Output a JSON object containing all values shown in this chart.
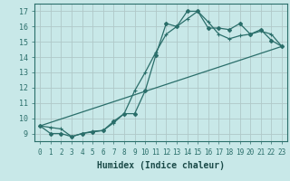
{
  "xlabel": "Humidex (Indice chaleur)",
  "background_color": "#c8e8e8",
  "grid_color": "#b0c8c8",
  "line_color": "#2a6e6a",
  "xlim": [
    -0.5,
    23.5
  ],
  "ylim": [
    8.5,
    17.5
  ],
  "xtick_vals": [
    0,
    1,
    2,
    3,
    4,
    5,
    6,
    7,
    8,
    9,
    10,
    11,
    12,
    13,
    14,
    15,
    16,
    17,
    18,
    19,
    20,
    21,
    22,
    23
  ],
  "ytick_vals": [
    9,
    10,
    11,
    12,
    13,
    14,
    15,
    16,
    17
  ],
  "line1_x": [
    0,
    1,
    2,
    3,
    4,
    5,
    6,
    7,
    8,
    9,
    10,
    11,
    12,
    13,
    14,
    15,
    16,
    17,
    18,
    19,
    20,
    21,
    22,
    23
  ],
  "line1_y": [
    9.5,
    9.0,
    9.0,
    8.8,
    9.0,
    9.1,
    9.2,
    9.8,
    10.3,
    10.3,
    11.8,
    14.1,
    16.2,
    16.0,
    17.0,
    17.0,
    15.9,
    15.9,
    15.8,
    16.2,
    15.5,
    15.8,
    15.1,
    14.7
  ],
  "line2_x": [
    0,
    1,
    2,
    3,
    4,
    5,
    6,
    7,
    8,
    9,
    10,
    11,
    12,
    13,
    14,
    15,
    16,
    17,
    18,
    19,
    20,
    21,
    22,
    23
  ],
  "line2_y": [
    9.5,
    9.4,
    9.3,
    8.8,
    9.0,
    9.15,
    9.2,
    9.7,
    10.3,
    11.8,
    13.0,
    14.3,
    15.5,
    16.0,
    16.5,
    17.0,
    16.3,
    15.5,
    15.2,
    15.4,
    15.5,
    15.7,
    15.5,
    14.7
  ],
  "line3_x": [
    0,
    23
  ],
  "line3_y": [
    9.5,
    14.7
  ],
  "xlabel_color": "#1a4a48",
  "xlabel_fontsize": 7,
  "tick_fontsize": 5.5
}
